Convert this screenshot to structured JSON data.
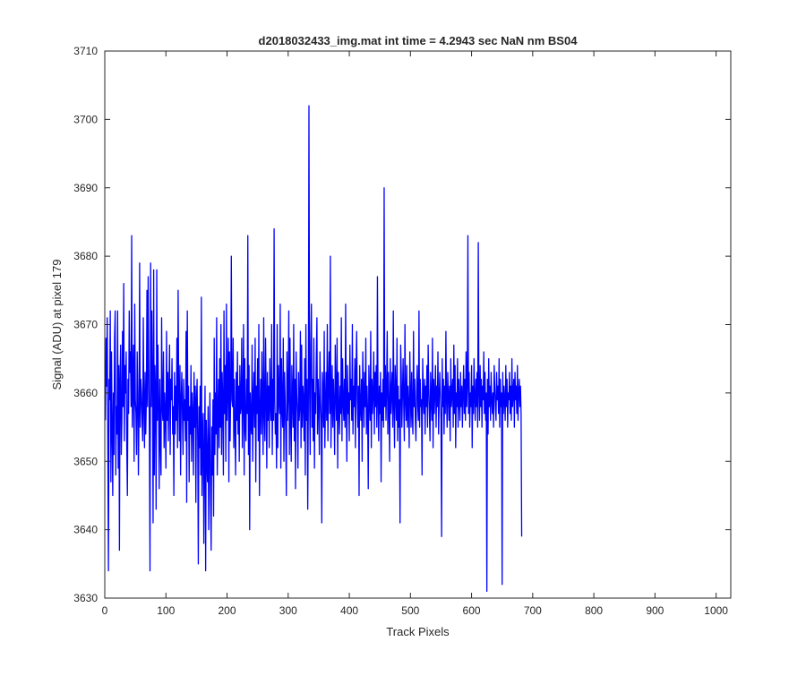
{
  "chart_data": {
    "type": "line",
    "title": "d2018032433_img.mat int time = 4.2943 sec  NaN nm BS04",
    "xlabel": "Track Pixels",
    "ylabel": "Signal (ADU) at pixel 179",
    "xlim": [
      0,
      1024
    ],
    "ylim": [
      3630,
      3710
    ],
    "xticks": [
      0,
      100,
      200,
      300,
      400,
      500,
      600,
      700,
      800,
      900,
      1000
    ],
    "yticks": [
      3630,
      3640,
      3650,
      3660,
      3670,
      3680,
      3690,
      3700,
      3710
    ],
    "grid": false,
    "legend": "none",
    "series": [
      {
        "color": "#0000ff",
        "x_start": 1,
        "x_step": 1,
        "values": [
          3656,
          3668,
          3661,
          3671,
          3652,
          3634,
          3662,
          3659,
          3672,
          3647,
          3666,
          3655,
          3645,
          3660,
          3651,
          3668,
          3672,
          3648,
          3658,
          3654,
          3672,
          3649,
          3664,
          3637,
          3662,
          3667,
          3651,
          3656,
          3669,
          3658,
          3676,
          3653,
          3664,
          3660,
          3666,
          3652,
          3645,
          3662,
          3657,
          3672,
          3663,
          3666,
          3658,
          3683,
          3655,
          3662,
          3667,
          3650,
          3673,
          3659,
          3657,
          3651,
          3666,
          3660,
          3648,
          3657,
          3679,
          3655,
          3662,
          3660,
          3656,
          3653,
          3671,
          3658,
          3652,
          3663,
          3654,
          3659,
          3675,
          3658,
          3677,
          3664,
          3653,
          3634,
          3679,
          3658,
          3672,
          3662,
          3641,
          3678,
          3648,
          3664,
          3660,
          3643,
          3678,
          3656,
          3667,
          3658,
          3646,
          3662,
          3653,
          3648,
          3671,
          3658,
          3656,
          3666,
          3652,
          3660,
          3657,
          3649,
          3669,
          3656,
          3663,
          3653,
          3661,
          3667,
          3651,
          3662,
          3659,
          3665,
          3654,
          3658,
          3645,
          3663,
          3654,
          3661,
          3656,
          3668,
          3652,
          3675,
          3660,
          3653,
          3664,
          3648,
          3659,
          3663,
          3657,
          3651,
          3662,
          3656,
          3659,
          3653,
          3669,
          3644,
          3672,
          3656,
          3661,
          3647,
          3658,
          3654,
          3664,
          3650,
          3660,
          3657,
          3648,
          3663,
          3655,
          3661,
          3644,
          3659,
          3662,
          3653,
          3635,
          3658,
          3652,
          3661,
          3648,
          3674,
          3645,
          3654,
          3657,
          3638,
          3651,
          3661,
          3634,
          3656,
          3650,
          3647,
          3658,
          3640,
          3652,
          3660,
          3645,
          3637,
          3655,
          3648,
          3659,
          3642,
          3668,
          3651,
          3660,
          3654,
          3671,
          3648,
          3657,
          3662,
          3652,
          3665,
          3655,
          3670,
          3651,
          3663,
          3659,
          3648,
          3672,
          3657,
          3664,
          3650,
          3673,
          3656,
          3661,
          3668,
          3647,
          3666,
          3653,
          3660,
          3680,
          3659,
          3658,
          3668,
          3652,
          3662,
          3655,
          3648,
          3663,
          3656,
          3666,
          3654,
          3661,
          3650,
          3664,
          3657,
          3658,
          3668,
          3652,
          3659,
          3670,
          3648,
          3665,
          3655,
          3653,
          3662,
          3657,
          3683,
          3651,
          3664,
          3640,
          3660,
          3656,
          3654,
          3667,
          3650,
          3659,
          3663,
          3655,
          3668,
          3647,
          3661,
          3657,
          3665,
          3653,
          3670,
          3645,
          3657,
          3662,
          3654,
          3666,
          3658,
          3651,
          3671,
          3657,
          3653,
          3668,
          3660,
          3649,
          3663,
          3656,
          3661,
          3652,
          3665,
          3658,
          3656,
          3670,
          3651,
          3662,
          3656,
          3684,
          3659,
          3654,
          3657,
          3649,
          3670,
          3652,
          3664,
          3659,
          3657,
          3673,
          3649,
          3665,
          3658,
          3655,
          3668,
          3650,
          3663,
          3659,
          3654,
          3645,
          3666,
          3656,
          3660,
          3672,
          3651,
          3668,
          3656,
          3650,
          3664,
          3659,
          3655,
          3670,
          3653,
          3662,
          3646,
          3666,
          3660,
          3657,
          3649,
          3663,
          3656,
          3658,
          3669,
          3652,
          3667,
          3655,
          3661,
          3659,
          3653,
          3665,
          3648,
          3670,
          3656,
          3662,
          3643,
          3658,
          3702,
          3660,
          3651,
          3667,
          3673,
          3655,
          3662,
          3653,
          3668,
          3649,
          3660,
          3657,
          3665,
          3671,
          3654,
          3662,
          3658,
          3651,
          3666,
          3659,
          3656,
          3641,
          3663,
          3660,
          3655,
          3669,
          3652,
          3658,
          3663,
          3656,
          3670,
          3653,
          3661,
          3666,
          3657,
          3680,
          3652,
          3659,
          3664,
          3655,
          3662,
          3658,
          3651,
          3667,
          3660,
          3656,
          3668,
          3649,
          3663,
          3658,
          3654,
          3661,
          3657,
          3671,
          3653,
          3665,
          3659,
          3656,
          3662,
          3655,
          3673,
          3658,
          3650,
          3664,
          3657,
          3660,
          3653,
          3667,
          3659,
          3662,
          3656,
          3670,
          3654,
          3661,
          3658,
          3665,
          3652,
          3663,
          3669,
          3659,
          3655,
          3661,
          3645,
          3664,
          3658,
          3656,
          3662,
          3650,
          3666,
          3660,
          3655,
          3663,
          3658,
          3668,
          3654,
          3661,
          3657,
          3646,
          3664,
          3659,
          3656,
          3669,
          3652,
          3662,
          3657,
          3660,
          3666,
          3654,
          3663,
          3658,
          3664,
          3655,
          3677,
          3659,
          3653,
          3661,
          3657,
          3663,
          3647,
          3660,
          3656,
          3662,
          3655,
          3690,
          3658,
          3664,
          3656,
          3661,
          3669,
          3654,
          3663,
          3658,
          3650,
          3665,
          3657,
          3660,
          3663,
          3655,
          3672,
          3658,
          3652,
          3664,
          3660,
          3656,
          3668,
          3653,
          3661,
          3655,
          3659,
          3641,
          3667,
          3663,
          3655,
          3660,
          3665,
          3658,
          3653,
          3670,
          3659,
          3656,
          3664,
          3655,
          3661,
          3658,
          3652,
          3666,
          3660,
          3655,
          3663,
          3657,
          3654,
          3669,
          3658,
          3662,
          3656,
          3653,
          3660,
          3664,
          3658,
          3656,
          3672,
          3655,
          3662,
          3658,
          3659,
          3648,
          3665,
          3660,
          3657,
          3662,
          3654,
          3661,
          3658,
          3664,
          3655,
          3667,
          3661,
          3657,
          3653,
          3663,
          3659,
          3656,
          3668,
          3652,
          3662,
          3657,
          3660,
          3664,
          3655,
          3661,
          3658,
          3666,
          3654,
          3659,
          3663,
          3660,
          3656,
          3639,
          3665,
          3658,
          3662,
          3654,
          3661,
          3657,
          3669,
          3659,
          3655,
          3663,
          3660,
          3656,
          3661,
          3653,
          3665,
          3658,
          3660,
          3662,
          3655,
          3667,
          3657,
          3664,
          3652,
          3660,
          3658,
          3665,
          3655,
          3662,
          3659,
          3656,
          3663,
          3658,
          3661,
          3655,
          3660,
          3664,
          3657,
          3662,
          3656,
          3666,
          3658,
          3661,
          3683,
          3657,
          3663,
          3655,
          3660,
          3658,
          3664,
          3652,
          3661,
          3657,
          3665,
          3659,
          3656,
          3662,
          3658,
          3663,
          3655,
          3682,
          3660,
          3656,
          3664,
          3658,
          3662,
          3655,
          3661,
          3659,
          3666,
          3657,
          3663,
          3656,
          3660,
          3631,
          3662,
          3654,
          3665,
          3658,
          3661,
          3656,
          3663,
          3659,
          3657,
          3660,
          3655,
          3664,
          3661,
          3658,
          3656,
          3663,
          3659,
          3661,
          3657,
          3665,
          3655,
          3662,
          3658,
          3660,
          3632,
          3663,
          3657,
          3661,
          3659,
          3656,
          3664,
          3658,
          3662,
          3655,
          3660,
          3659,
          3663,
          3657,
          3661,
          3656,
          3665,
          3658,
          3660,
          3662,
          3655,
          3663,
          3659,
          3661,
          3657,
          3664,
          3656,
          3660,
          3662,
          3658,
          3661,
          3657,
          3639
        ]
      }
    ]
  }
}
